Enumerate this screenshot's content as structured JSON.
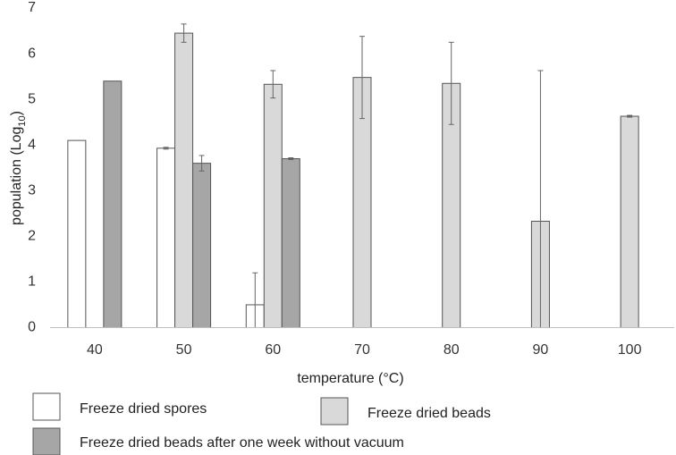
{
  "chart_data": {
    "type": "bar",
    "title": "",
    "xlabel": "temperature (°C)",
    "ylabel": {
      "base": "population (Log",
      "sub": "10",
      "tail": ")"
    },
    "categories": [
      "40",
      "50",
      "60",
      "70",
      "80",
      "90",
      "100"
    ],
    "ylim": [
      0,
      7
    ],
    "yticks": [
      0,
      1,
      2,
      3,
      4,
      5,
      6,
      7
    ],
    "grid": false,
    "legend_position": "bottom",
    "series": [
      {
        "name": "Freeze dried spores",
        "color": "#ffffff",
        "values": [
          4.1,
          3.93,
          0.5,
          null,
          null,
          null,
          null
        ],
        "errors": [
          0,
          0.02,
          0.7,
          null,
          null,
          null,
          null
        ]
      },
      {
        "name": "Freeze dried beads",
        "color": "#d9d9d9",
        "values": [
          null,
          6.45,
          5.33,
          5.48,
          5.35,
          2.33,
          4.63
        ],
        "errors": [
          null,
          0.2,
          0.3,
          0.9,
          0.9,
          3.3,
          0.02
        ]
      },
      {
        "name": "Freeze dried beads after one week without vacuum",
        "color": "#a6a6a6",
        "values": [
          5.4,
          3.6,
          3.7,
          null,
          null,
          null,
          null
        ],
        "errors": [
          0,
          0.17,
          0.02,
          null,
          null,
          null,
          null
        ]
      }
    ]
  }
}
